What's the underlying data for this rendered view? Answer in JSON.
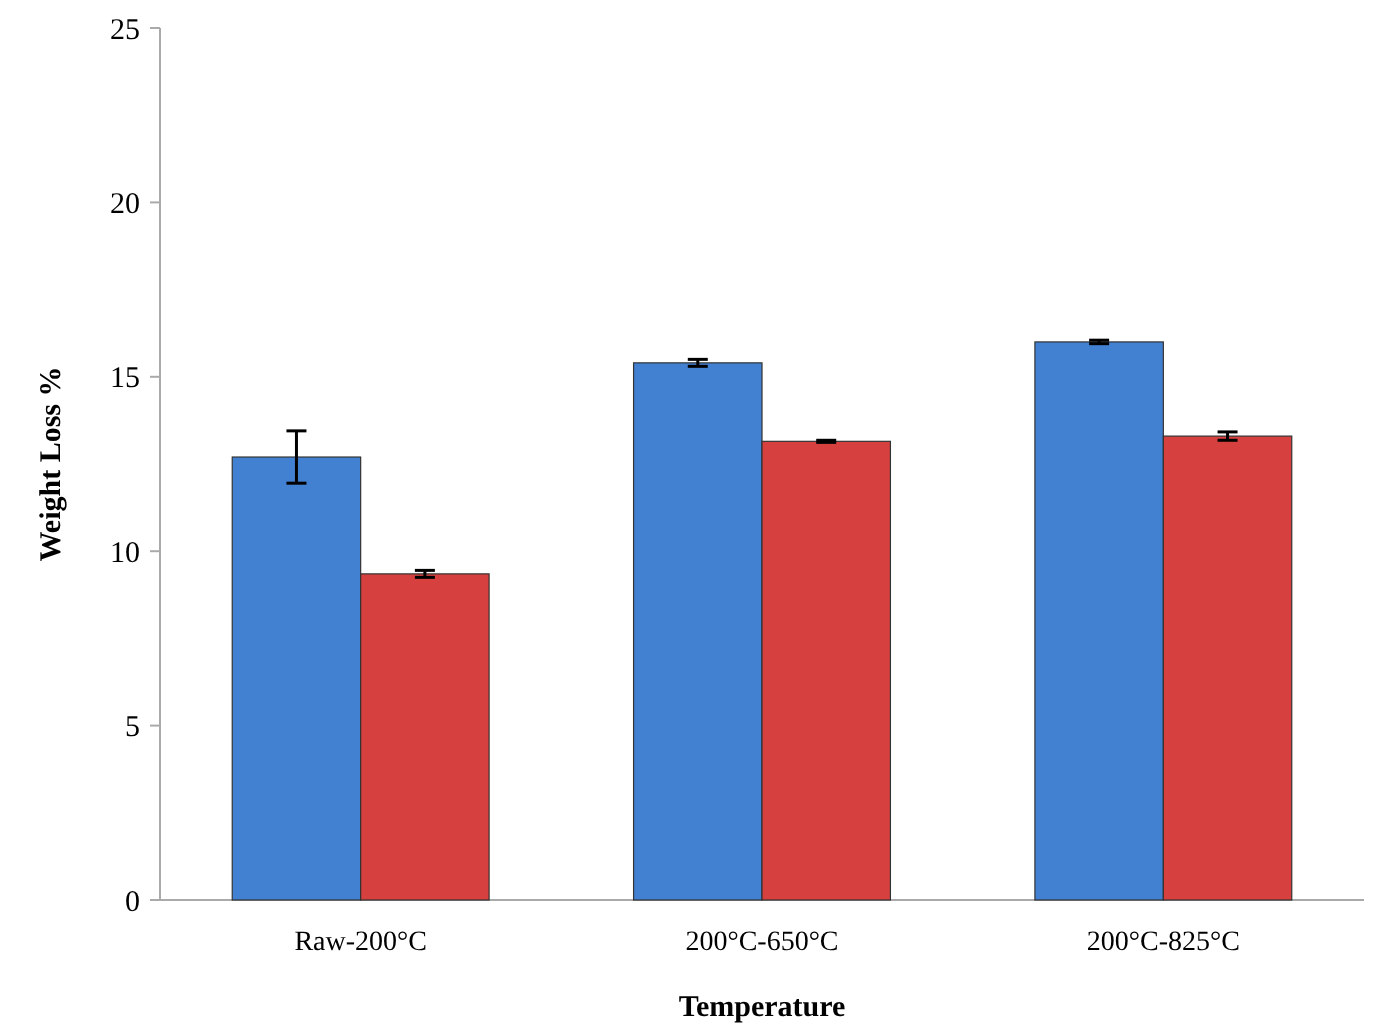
{
  "chart_data": {
    "type": "bar",
    "xlabel": "Temperature",
    "ylabel": "Weight Loss %",
    "categories": [
      "Raw-200°C",
      "200°C-650°C",
      "200°C-825°C"
    ],
    "series": [
      {
        "color": "#4280d2",
        "values": [
          12.7,
          15.4,
          16.0
        ],
        "errors": [
          0.75,
          0.1,
          0.05
        ]
      },
      {
        "color": "#d6403e",
        "values": [
          9.35,
          13.15,
          13.3
        ],
        "errors": [
          0.1,
          0.03,
          0.12
        ]
      }
    ],
    "ylim": [
      0,
      25
    ],
    "yticks": [
      0,
      5,
      10,
      15,
      20,
      25
    ]
  }
}
